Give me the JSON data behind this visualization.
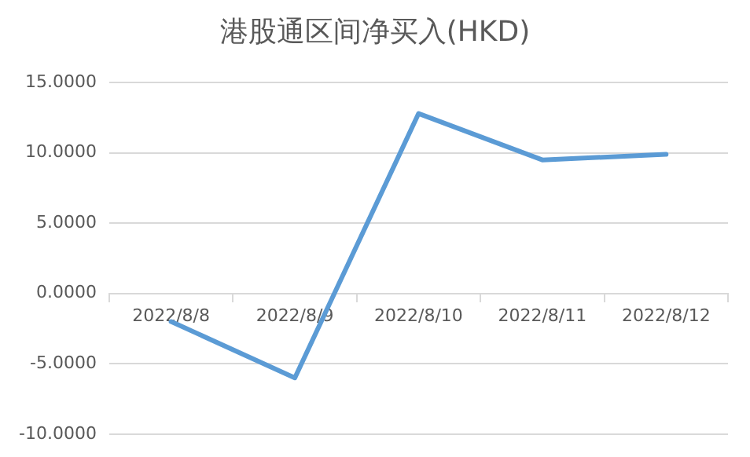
{
  "chart_data": {
    "type": "line",
    "title": "港股通区间净买入(HKD)",
    "categories": [
      "2022/8/8",
      "2022/8/9",
      "2022/8/10",
      "2022/8/11",
      "2022/8/12"
    ],
    "series": [
      {
        "color": "#5b9bd5",
        "values": [
          -2.0,
          -6.0,
          12.8,
          9.5,
          9.9
        ]
      }
    ],
    "ylim": [
      -10,
      15
    ],
    "yticks": [
      {
        "value": -10,
        "label": "-10.0000"
      },
      {
        "value": -5,
        "label": "-5.0000"
      },
      {
        "value": 0,
        "label": "0.0000"
      },
      {
        "value": 5,
        "label": "5.0000"
      },
      {
        "value": 10,
        "label": "10.0000"
      },
      {
        "value": 15,
        "label": "15.0000"
      }
    ],
    "grid": "y",
    "legend": false,
    "marker": "none",
    "line_style": "solid"
  }
}
